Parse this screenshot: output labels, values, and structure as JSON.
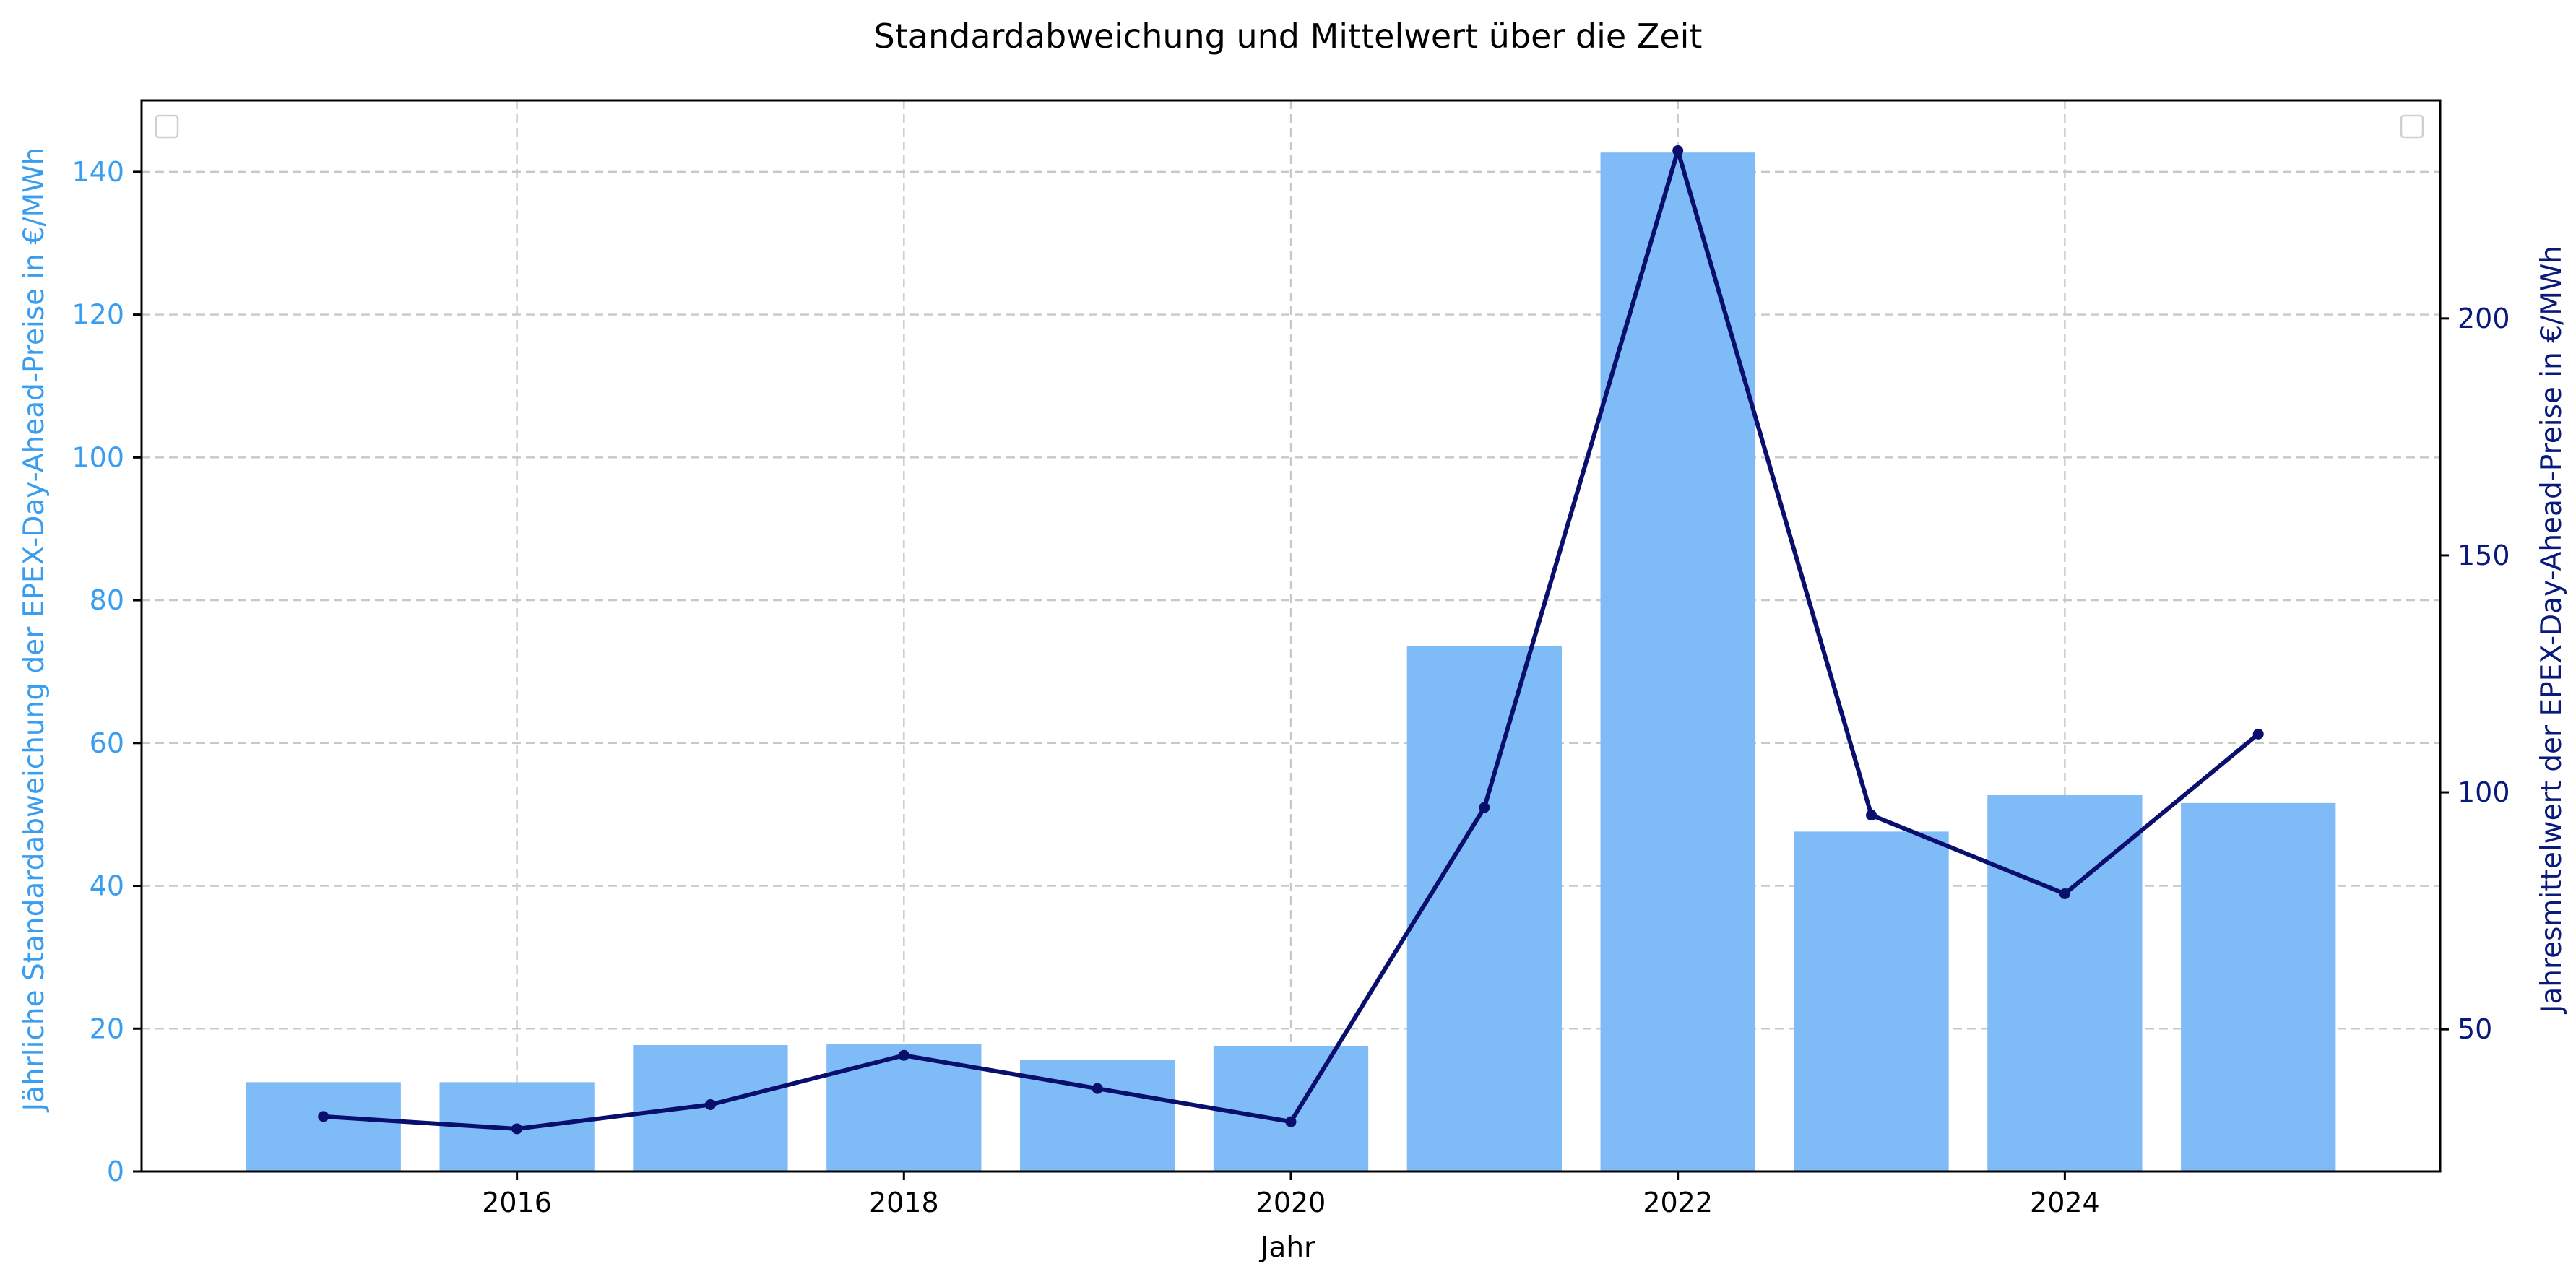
{
  "chart_data": {
    "type": "bar",
    "title": "Standardabweichung und Mittelwert über die Zeit",
    "xlabel": "Jahr",
    "ylabel_left": "Jährliche Standardabweichung der EPEX-Day-Ahead-Preise in €/MWh",
    "ylabel_right": "Jahresmittelwert der EPEX-Day-Ahead-Preise in €/MWh",
    "x": [
      2015,
      2016,
      2017,
      2018,
      2019,
      2020,
      2021,
      2022,
      2023,
      2024,
      2025
    ],
    "xlim": [
      2014.06,
      2025.94
    ],
    "xticks": [
      2016,
      2018,
      2020,
      2022,
      2024
    ],
    "ylim_left": [
      0,
      150
    ],
    "yticks_left": [
      0,
      20,
      40,
      60,
      80,
      100,
      120,
      140
    ],
    "ylim_right": [
      20,
      246
    ],
    "yticks_right": [
      50,
      100,
      150,
      200
    ],
    "grid": true,
    "series": [
      {
        "type": "bar",
        "axis": "left",
        "values": [
          12.5,
          12.5,
          17.7,
          17.8,
          15.6,
          17.6,
          73.6,
          142.7,
          47.6,
          52.7,
          51.6
        ],
        "color": "#7fbcf7"
      },
      {
        "type": "line",
        "axis": "right",
        "values": [
          31.6,
          29.0,
          34.1,
          44.5,
          37.5,
          30.5,
          96.8,
          235.4,
          95.2,
          78.6,
          112.3
        ],
        "color": "#0a0f6e"
      }
    ],
    "colors": {
      "left_axis": "#3a9ef0",
      "right_axis": "#0a1a7a"
    }
  }
}
